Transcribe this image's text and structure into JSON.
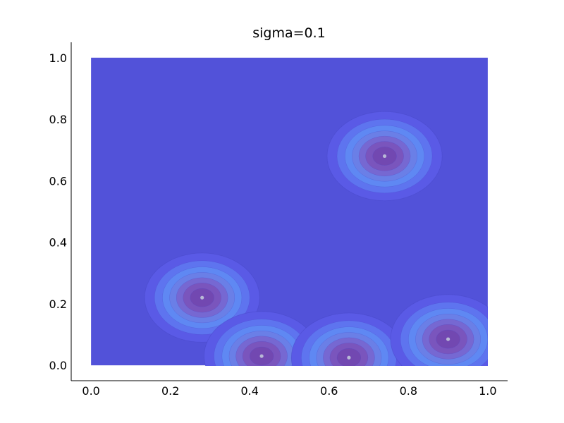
{
  "chart_data": {
    "type": "heatmap",
    "title": "sigma=0.1",
    "xlabel": "",
    "ylabel": "",
    "xlim": [
      -0.05,
      1.05
    ],
    "ylim": [
      -0.05,
      1.05
    ],
    "grid": false,
    "x_ticks": [
      "0.0",
      "0.2",
      "0.4",
      "0.6",
      "0.8",
      "1.0"
    ],
    "y_ticks": [
      "0.0",
      "0.2",
      "0.4",
      "0.6",
      "0.8",
      "1.0"
    ],
    "x_tick_values": [
      0.0,
      0.2,
      0.4,
      0.6,
      0.8,
      1.0
    ],
    "y_tick_values": [
      0.0,
      0.2,
      0.4,
      0.6,
      0.8,
      1.0
    ],
    "extent": {
      "x": [
        0.0,
        1.0
      ],
      "y": [
        0.0,
        1.0
      ]
    },
    "sigma": 0.1,
    "points": [
      {
        "x": 0.74,
        "y": 0.68
      },
      {
        "x": 0.28,
        "y": 0.22
      },
      {
        "x": 0.43,
        "y": 0.03
      },
      {
        "x": 0.65,
        "y": 0.025
      },
      {
        "x": 0.9,
        "y": 0.085
      }
    ],
    "colors": {
      "background": "#5252d9",
      "levels": [
        "#5a5ae6",
        "#5e74ef",
        "#5f88f3",
        "#6a7fe7",
        "#7668d2",
        "#7a55bd",
        "#7248b1"
      ],
      "point": "#b8b8d6"
    }
  }
}
